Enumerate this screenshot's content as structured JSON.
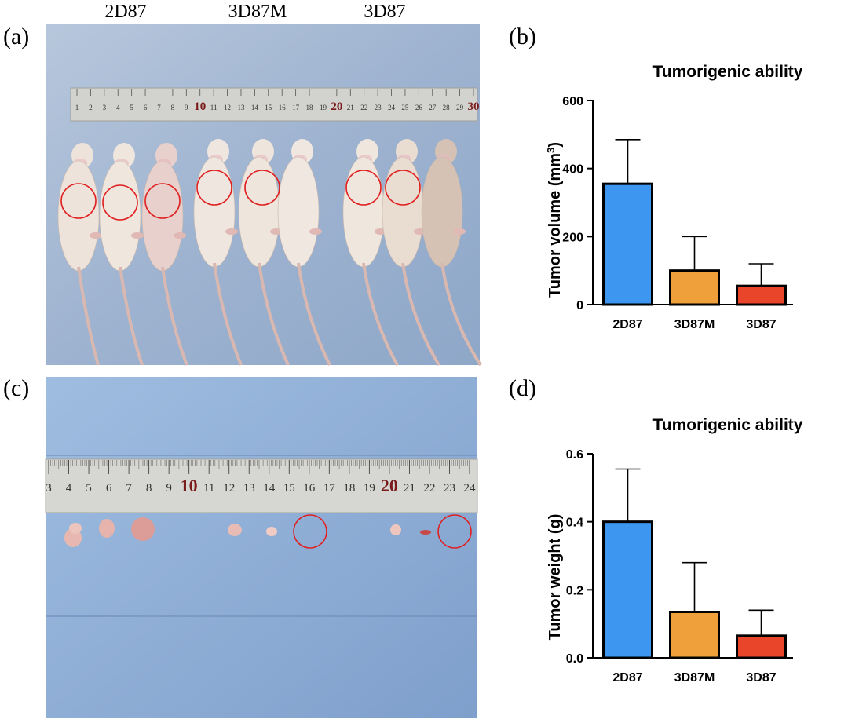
{
  "panels": {
    "a": "(a)",
    "b": "(b)",
    "c": "(c)",
    "d": "(d)"
  },
  "photo_a": {
    "group_labels": [
      "2D87",
      "3D87M",
      "3D87"
    ],
    "ruler_ticks": [
      "1",
      "2",
      "3",
      "4",
      "5",
      "6",
      "7",
      "8",
      "9",
      "10",
      "11",
      "12",
      "13",
      "14",
      "15",
      "16",
      "17",
      "18",
      "19",
      "20",
      "21",
      "22",
      "23",
      "24",
      "25",
      "26",
      "27",
      "28",
      "29",
      "30"
    ]
  },
  "photo_c": {
    "ruler_ticks": [
      "3",
      "4",
      "5",
      "6",
      "7",
      "8",
      "9",
      "10",
      "11",
      "12",
      "13",
      "14",
      "15",
      "16",
      "17",
      "18",
      "19",
      "20",
      "21",
      "22",
      "23",
      "24"
    ]
  },
  "colors": {
    "2D87": "#3d97f0",
    "3D87M": "#f0a03a",
    "3D87": "#e8452a",
    "photo_bg": "#8aa6cc",
    "circle": "#e02020"
  },
  "chart_data": [
    {
      "type": "bar",
      "title": "Tumorigenic ability",
      "ylabel_main": "Tumor volume (mm",
      "ylabel_sup": "3",
      "ylabel_end": ")",
      "categories": [
        "2D87",
        "3D87M",
        "3D87"
      ],
      "values": [
        355,
        100,
        55
      ],
      "errors": [
        130,
        100,
        65
      ],
      "ylim": [
        0,
        600
      ],
      "yticks": [
        0,
        200,
        400,
        600
      ],
      "ytick_labels": [
        "0",
        "200",
        "400",
        "600"
      ]
    },
    {
      "type": "bar",
      "title": "Tumorigenic ability",
      "ylabel": "Tumor weight (g)",
      "categories": [
        "2D87",
        "3D87M",
        "3D87"
      ],
      "values": [
        0.4,
        0.135,
        0.065
      ],
      "errors": [
        0.155,
        0.145,
        0.075
      ],
      "ylim": [
        0,
        0.6
      ],
      "yticks": [
        0,
        0.2,
        0.4,
        0.6
      ],
      "ytick_labels": [
        "0.0",
        "0.2",
        "0.4",
        "0.6"
      ]
    }
  ]
}
